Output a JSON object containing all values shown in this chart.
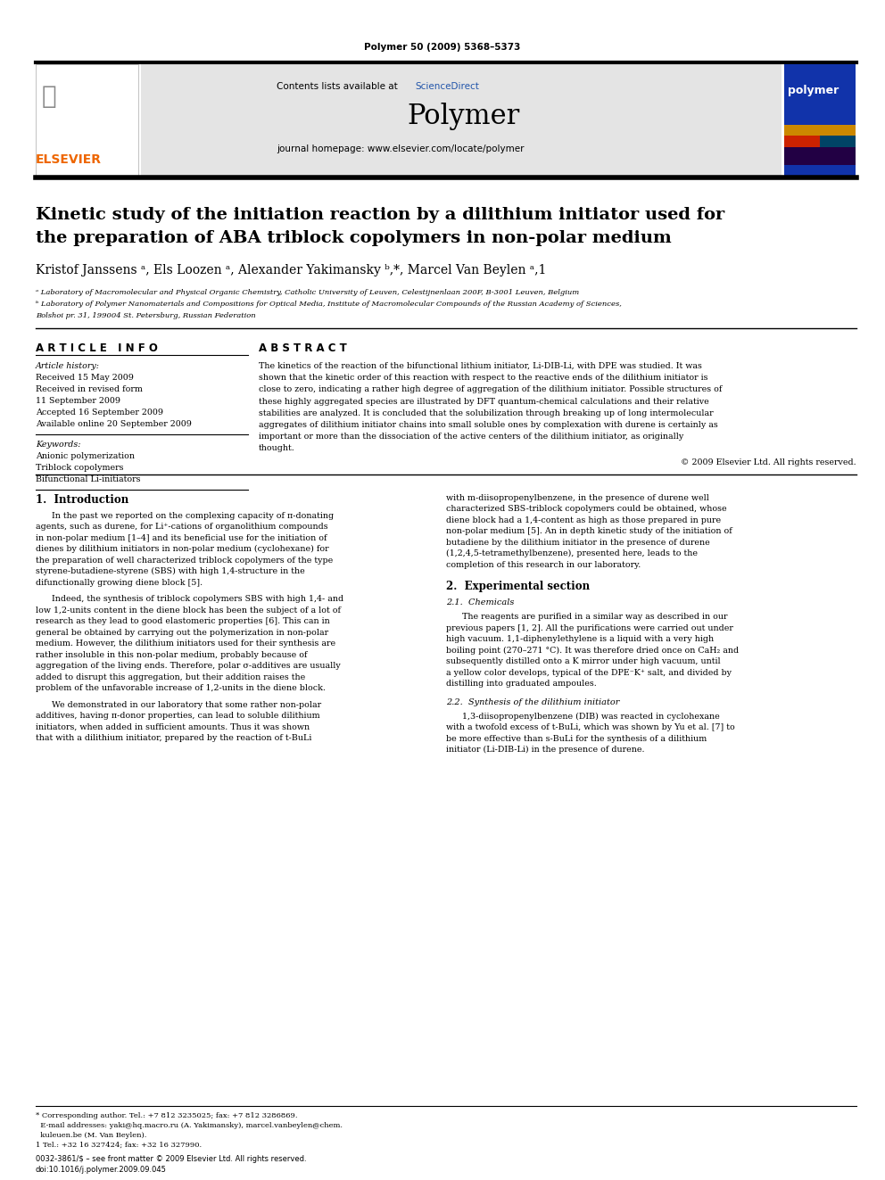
{
  "page_width": 9.92,
  "page_height": 13.23,
  "dpi": 100,
  "bg_color": "#ffffff",
  "journal_ref": "Polymer 50 (2009) 5368–5373",
  "header_bg": "#e4e4e4",
  "header_text_before": "Contents lists available at ",
  "header_text_link": "ScienceDirect",
  "sciencedirect_color": "#2255aa",
  "journal_name": "Polymer",
  "journal_url": "journal homepage: www.elsevier.com/locate/polymer",
  "title_line1": "Kinetic study of the initiation reaction by a dilithium initiator used for",
  "title_line2": "the preparation of ABA triblock copolymers in non-polar medium",
  "author_line": "Kristof Janssens ᵃ, Els Loozen ᵃ, Alexander Yakimansky ᵇ,*, Marcel Van Beylen ᵃ,1",
  "affil_a": "ᵃ Laboratory of Macromolecular and Physical Organic Chemistry, Catholic University of Leuven, Celestijnenlaan 200F, B-3001 Leuven, Belgium",
  "affil_b": "ᵇ Laboratory of Polymer Nanomaterials and Compositions for Optical Media, Institute of Macromolecular Compounds of the Russian Academy of Sciences,",
  "affil_b2": "Bolshoi pr. 31, 199004 St. Petersburg, Russian Federation",
  "article_info_label": "A R T I C L E   I N F O",
  "abstract_label": "A B S T R A C T",
  "article_history_label": "Article history:",
  "received1": "Received 15 May 2009",
  "received_revised": "Received in revised form",
  "date_revised": "11 September 2009",
  "accepted": "Accepted 16 September 2009",
  "available_online": "Available online 20 September 2009",
  "keywords_label": "Keywords:",
  "kw1": "Anionic polymerization",
  "kw2": "Triblock copolymers",
  "kw3": "Bifunctional Li-initiators",
  "abstract_lines": [
    "The kinetics of the reaction of the bifunctional lithium initiator, Li-DIB-Li, with DPE was studied. It was",
    "shown that the kinetic order of this reaction with respect to the reactive ends of the dilithium initiator is",
    "close to zero, indicating a rather high degree of aggregation of the dilithium initiator. Possible structures of",
    "these highly aggregated species are illustrated by DFT quantum-chemical calculations and their relative",
    "stabilities are analyzed. It is concluded that the solubilization through breaking up of long intermolecular",
    "aggregates of dilithium initiator chains into small soluble ones by complexation with durene is certainly as",
    "important or more than the dissociation of the active centers of the dilithium initiator, as originally",
    "thought."
  ],
  "copyright": "© 2009 Elsevier Ltd. All rights reserved.",
  "intro_heading": "1.  Introduction",
  "intro_col1_para1": [
    "In the past we reported on the complexing capacity of π-donating",
    "agents, such as durene, for Li⁺-cations of organolithium compounds",
    "in non-polar medium [1–4] and its beneficial use for the initiation of",
    "dienes by dilithium initiators in non-polar medium (cyclohexane) for",
    "the preparation of well characterized triblock copolymers of the type",
    "styrene-butadiene-styrene (SBS) with high 1,4-structure in the",
    "difunctionally growing diene block [5]."
  ],
  "intro_col1_para2": [
    "Indeed, the synthesis of triblock copolymers SBS with high 1,4- and",
    "low 1,2-units content in the diene block has been the subject of a lot of",
    "research as they lead to good elastomeric properties [6]. This can in",
    "general be obtained by carrying out the polymerization in non-polar",
    "medium. However, the dilithium initiators used for their synthesis are",
    "rather insoluble in this non-polar medium, probably because of",
    "aggregation of the living ends. Therefore, polar σ-additives are usually",
    "added to disrupt this aggregation, but their addition raises the",
    "problem of the unfavorable increase of 1,2-units in the diene block."
  ],
  "intro_col1_para3": [
    "We demonstrated in our laboratory that some rather non-polar",
    "additives, having π-donor properties, can lead to soluble dilithium",
    "initiators, when added in sufficient amounts. Thus it was shown",
    "that with a dilithium initiator, prepared by the reaction of t-BuLi"
  ],
  "intro_col2_para1": [
    "with m-diisopropenylbenzene, in the presence of durene well",
    "characterized SBS-triblock copolymers could be obtained, whose",
    "diene block had a 1,4-content as high as those prepared in pure",
    "non-polar medium [5]. An in depth kinetic study of the initiation of",
    "butadiene by the dilithium initiator in the presence of durene",
    "(1,2,4,5-tetramethylbenzene), presented here, leads to the",
    "completion of this research in our laboratory."
  ],
  "exp_heading": "2.  Experimental section",
  "exp_sub1": "2.1.  Chemicals",
  "exp_col2_para1": [
    "The reagents are purified in a similar way as described in our",
    "previous papers [1, 2]. All the purifications were carried out under",
    "high vacuum. 1,1-diphenylethylene is a liquid with a very high",
    "boiling point (270–271 °C). It was therefore dried once on CaH₂ and",
    "subsequently distilled onto a K mirror under high vacuum, until",
    "a yellow color develops, typical of the DPE⁻K⁺ salt, and divided by",
    "distilling into graduated ampoules."
  ],
  "exp_sub2": "2.2.  Synthesis of the dilithium initiator",
  "exp_col2_para2": [
    "1,3-diisopropenylbenzene (DIB) was reacted in cyclohexane",
    "with a twofold excess of t-BuLi, which was shown by Yu et al. [7] to",
    "be more effective than s-BuLi for the synthesis of a dilithium",
    "initiator (Li-DIB-Li) in the presence of durene."
  ],
  "footnote1": "* Corresponding author. Tel.: +7 812 3235025; fax: +7 812 3286869.",
  "footnote2": "  E-mail addresses: yaki@hq.macro.ru (A. Yakimansky), marcel.vanbeylen@chem.",
  "footnote3": "  kuleuen.be (M. Van Beylen).",
  "footnote4": "1 Tel.: +32 16 327424; fax: +32 16 327990.",
  "footer1": "0032-3861/$ – see front matter © 2009 Elsevier Ltd. All rights reserved.",
  "footer2": "doi:10.1016/j.polymer.2009.09.045",
  "elsevier_color": "#ee6600",
  "polymer_cover_color": "#1133aa"
}
